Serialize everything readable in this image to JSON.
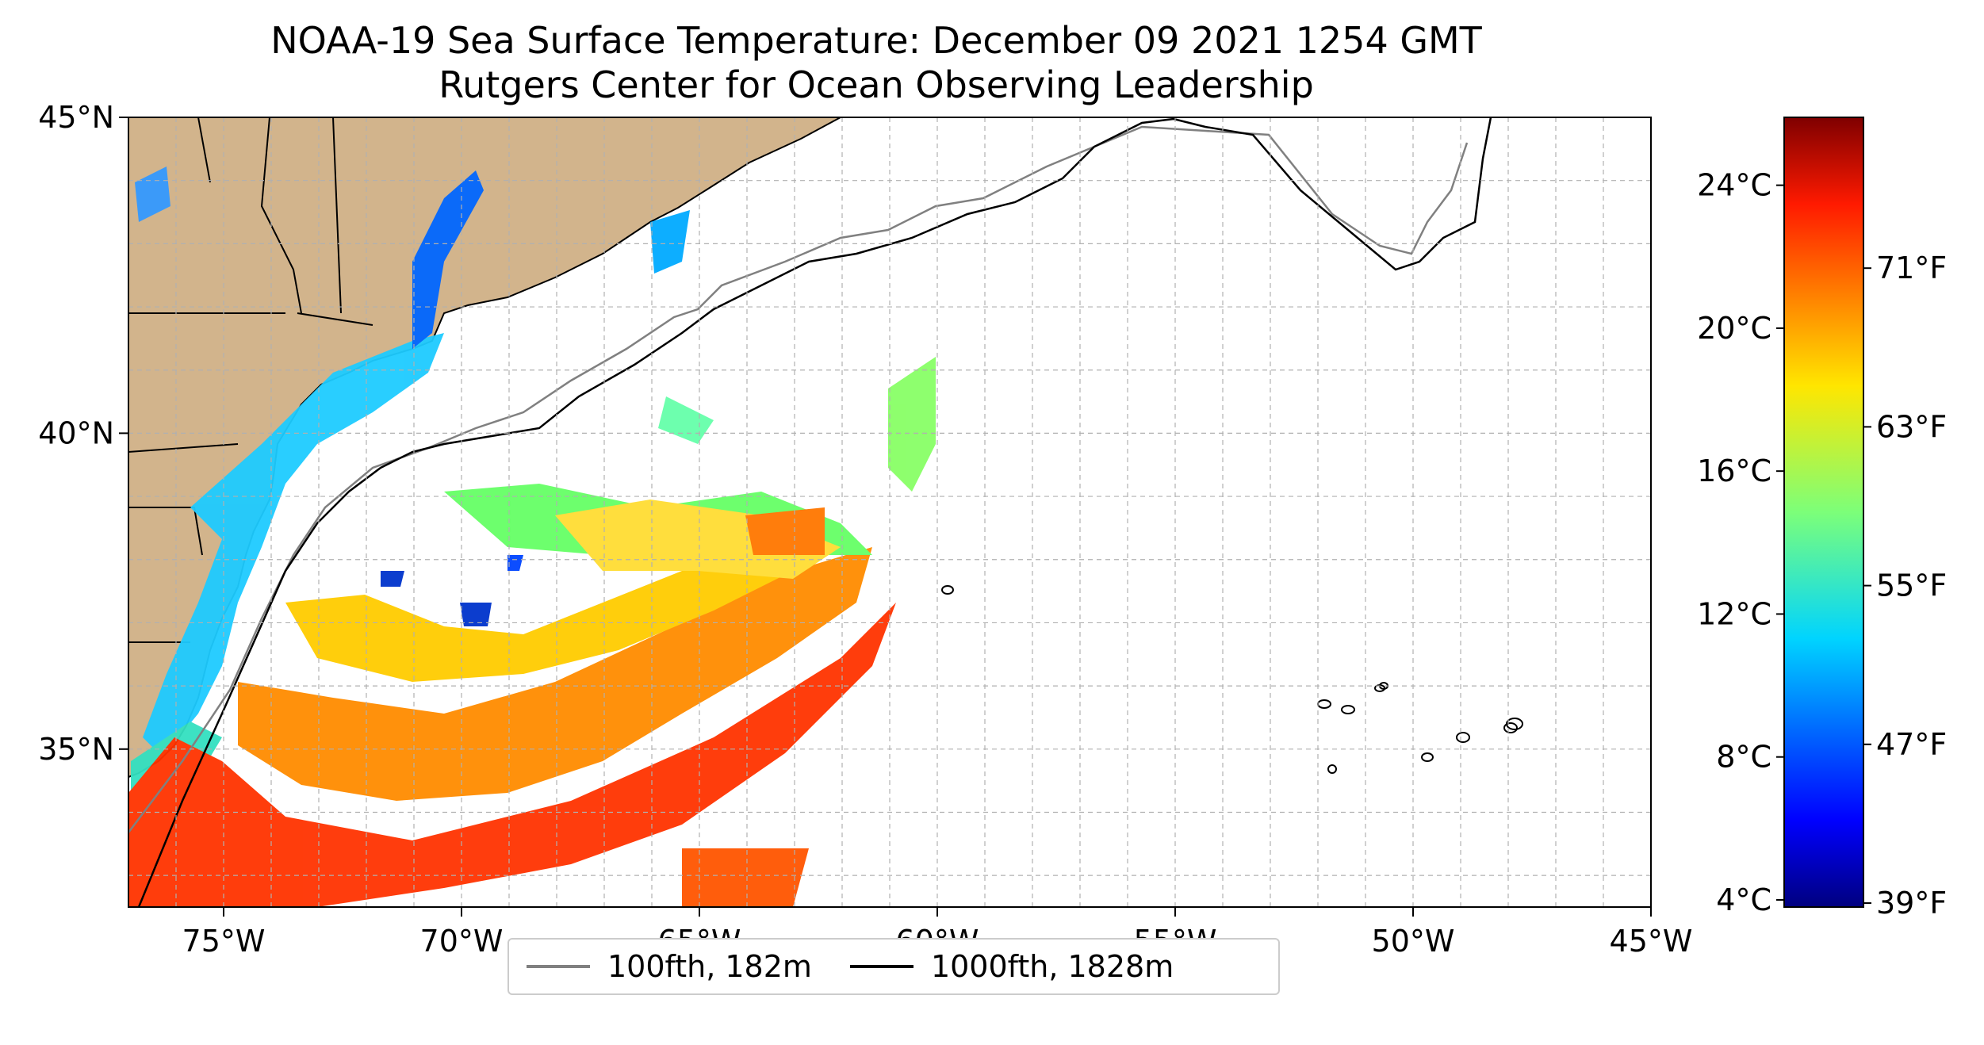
{
  "title": "NOAA-19 Sea Surface Temperature: December 09 2021 1254 GMT",
  "subtitle": "Rutgers Center for Ocean Observing Leadership",
  "map": {
    "lon_range": [
      -77,
      -45
    ],
    "lat_range": [
      32.5,
      45
    ],
    "lon_ticks": [
      "75°W",
      "70°W",
      "65°W",
      "60°W",
      "55°W",
      "50°W",
      "45°W"
    ],
    "lat_ticks": [
      "45°N",
      "40°N",
      "35°N"
    ],
    "land_color": "#d2b48c",
    "gridlines": true
  },
  "colorbar": {
    "colormap": "jet",
    "celsius_labels": [
      "24°C",
      "20°C",
      "16°C",
      "12°C",
      "8°C",
      "4°C"
    ],
    "fahrenheit_labels": [
      "71°F",
      "63°F",
      "55°F",
      "47°F",
      "39°F"
    ]
  },
  "legend": {
    "entries": [
      {
        "label": "100fth, 182m",
        "color": "#808080"
      },
      {
        "label": "1000fth, 1828m",
        "color": "#000000"
      }
    ]
  }
}
